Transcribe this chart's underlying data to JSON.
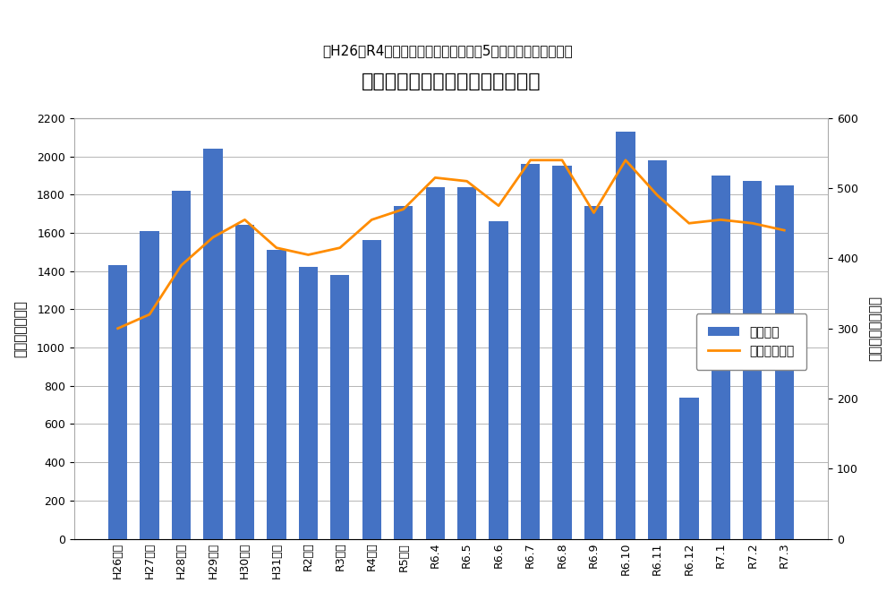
{
  "title": "手術部混注処方箋枚数と調製件数",
  "subtitle": "（H26～R4年度は月平均データ、令和5年度は各月のデータ）",
  "categories": [
    "H26年度",
    "H27年度",
    "H28年度",
    "H29年度",
    "H30年度",
    "H31年度",
    "R2年度",
    "R3年度",
    "R4年度",
    "R5年度",
    "R6.4",
    "R6.5",
    "R6.6",
    "R6.7",
    "R6.8",
    "R6.9",
    "R6.10",
    "R6.11",
    "R6.12",
    "R7.1",
    "R7.2",
    "R7.3"
  ],
  "bar_values": [
    1430,
    1610,
    1820,
    2040,
    1640,
    1510,
    1420,
    1380,
    1560,
    1740,
    1840,
    1840,
    1660,
    1960,
    1950,
    1740,
    2130,
    1980,
    740,
    1900,
    1870,
    1850
  ],
  "line_values": [
    300,
    320,
    390,
    430,
    455,
    415,
    405,
    415,
    455,
    470,
    515,
    510,
    475,
    540,
    540,
    465,
    540,
    490,
    450,
    455,
    450,
    440
  ],
  "ylabel_left": "調製件数（件）",
  "ylabel_right": "処方箋枚数（枚）",
  "ylim_left": [
    0,
    2200
  ],
  "ylim_right": [
    0,
    600
  ],
  "yticks_left": [
    0,
    200,
    400,
    600,
    800,
    1000,
    1200,
    1400,
    1600,
    1800,
    2000,
    2200
  ],
  "yticks_right": [
    0,
    100,
    200,
    300,
    400,
    500,
    600
  ],
  "bar_color": "#4472C4",
  "line_color": "#FF8C00",
  "legend_bar": "調製件数",
  "legend_line": "処方せん枚数",
  "bg_color": "#FFFFFF",
  "plot_bg_color": "#FFFFFF",
  "title_fontsize": 16,
  "subtitle_fontsize": 11,
  "tick_fontsize": 9,
  "axis_label_fontsize": 11
}
